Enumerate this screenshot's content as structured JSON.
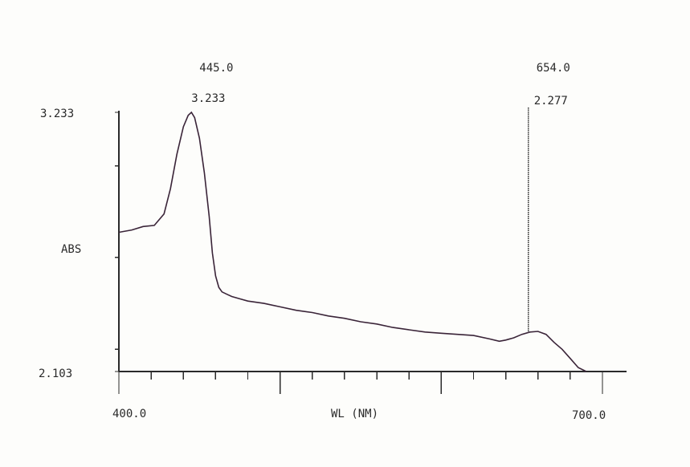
{
  "chart_data": {
    "type": "line",
    "xlabel": "WL (NM)",
    "ylabel": "ABS",
    "xlim": [
      400.0,
      700.0
    ],
    "ylim": [
      2.103,
      3.233
    ],
    "x_tick_labels": [
      "400.0",
      "700.0"
    ],
    "y_tick_labels": [
      "3.233",
      "2.103"
    ],
    "x_minor_ticks": [
      420,
      440,
      460,
      480,
      500,
      520,
      540,
      560,
      580,
      600,
      620,
      640,
      660,
      680
    ],
    "x_major_ticks": [
      500,
      600
    ],
    "y_ticks": [
      2.2,
      2.6,
      3.0
    ],
    "annotations": [
      {
        "wavelength": "445.0",
        "absorbance": "3.233",
        "x": 445.0,
        "y": 3.233
      },
      {
        "wavelength": "654.0",
        "absorbance": "2.277",
        "x": 654.0,
        "y": 2.277,
        "vertical_line": true
      }
    ],
    "series": [
      {
        "x": [
          400,
          408,
          415,
          422,
          428,
          432,
          436,
          440,
          443,
          445,
          447,
          450,
          453,
          456,
          458,
          460,
          462,
          464,
          467,
          470,
          475,
          480,
          490,
          500,
          510,
          520,
          530,
          540,
          550,
          560,
          570,
          580,
          590,
          600,
          610,
          620,
          630,
          636,
          640,
          645,
          650,
          655,
          660,
          665,
          670,
          675,
          680,
          685,
          690
        ],
        "y": [
          2.71,
          2.72,
          2.735,
          2.74,
          2.79,
          2.9,
          3.05,
          3.17,
          3.22,
          3.233,
          3.21,
          3.12,
          2.97,
          2.78,
          2.62,
          2.52,
          2.47,
          2.45,
          2.44,
          2.43,
          2.42,
          2.41,
          2.4,
          2.385,
          2.37,
          2.36,
          2.345,
          2.335,
          2.32,
          2.31,
          2.295,
          2.285,
          2.275,
          2.27,
          2.265,
          2.26,
          2.245,
          2.235,
          2.24,
          2.25,
          2.265,
          2.275,
          2.278,
          2.265,
          2.23,
          2.2,
          2.16,
          2.12,
          2.103
        ]
      }
    ]
  }
}
